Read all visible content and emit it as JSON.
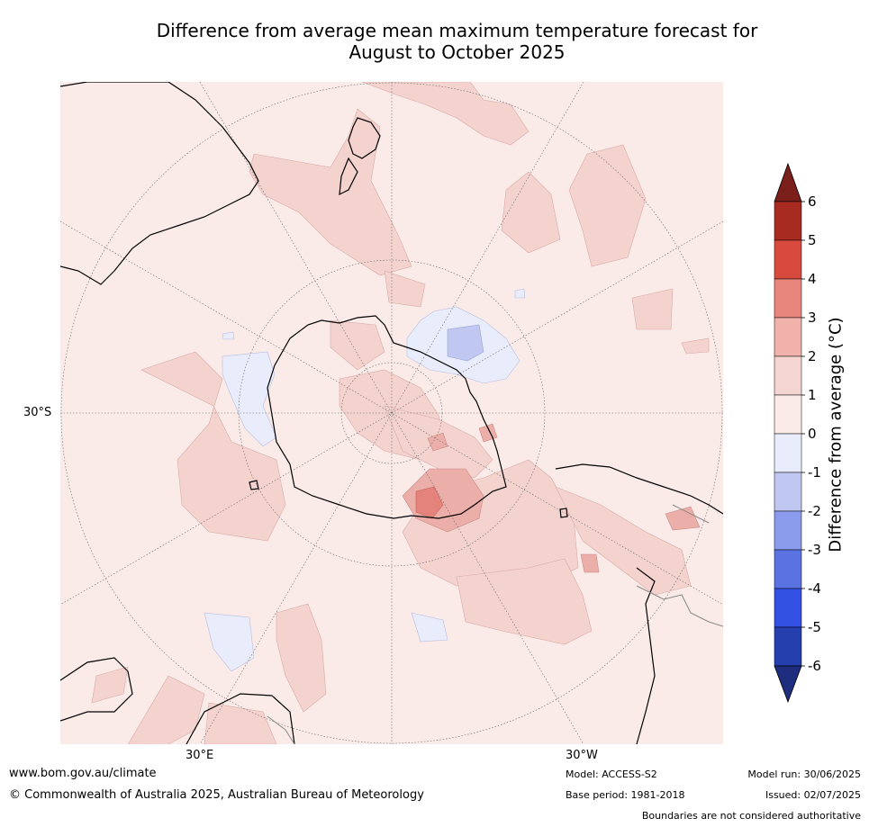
{
  "title_line1": "Difference from average mean maximum temperature forecast for",
  "title_line2": "August to October 2025",
  "map": {
    "projection": "south-polar-stereographic",
    "lat_label": "30°S",
    "lon_labels": {
      "east": "30°E",
      "west": "30°W"
    },
    "background_color": "#fbebe8",
    "regions": [
      {
        "anomaly_class": "1 to 2",
        "color": "#f4d3cf"
      },
      {
        "anomaly_class": "0 to -1",
        "color": "#e8ecfb"
      },
      {
        "anomaly_class": "-1 to -2",
        "color": "#c0c7f1"
      },
      {
        "anomaly_class": "2 to 3",
        "color": "#ecaea8"
      },
      {
        "anomaly_class": "3 to 4",
        "color": "#e4837c"
      }
    ]
  },
  "colorbar": {
    "title": "Difference from average (°C)",
    "tick_labels": [
      "6",
      "5",
      "4",
      "3",
      "2",
      "1",
      "0",
      "-1",
      "-2",
      "-3",
      "-4",
      "-5",
      "-6"
    ],
    "colors": [
      "#a82b22",
      "#d94a3e",
      "#e8857c",
      "#f0b2ab",
      "#f5d5d1",
      "#fbebe8",
      "#e9ecfb",
      "#c0c7f1",
      "#8b9cec",
      "#5b72e3",
      "#3351e2",
      "#263fae"
    ],
    "over_color": "#7a1f19",
    "under_color": "#1f2d7f"
  },
  "footer": {
    "website": "www.bom.gov.au/climate",
    "copyright": "© Commonwealth of Australia 2025, Australian Bureau of Meteorology",
    "model": "Model: ACCESS-S2",
    "base_period": "Base period: 1981-2018",
    "model_run": "Model run: 30/06/2025",
    "issued": "Issued: 02/07/2025",
    "disclaimer": "Boundaries are not considered authoritative"
  }
}
